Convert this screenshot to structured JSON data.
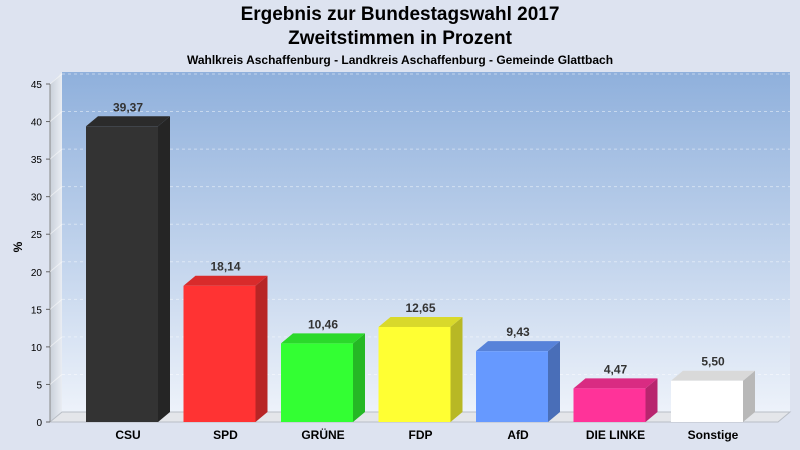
{
  "chart_data": {
    "type": "bar",
    "title": "Ergebnis zur Bundestagswahl 2017",
    "subtitle": "Zweitstimmen in Prozent",
    "caption": "Wahlkreis Aschaffenburg - Landkreis Aschaffenburg - Gemeinde Glattbach",
    "ylabel": "%",
    "xlabel": "",
    "ylim": [
      0,
      45
    ],
    "yticks": [
      0,
      5,
      10,
      15,
      20,
      25,
      30,
      35,
      40,
      45
    ],
    "categories": [
      "CSU",
      "SPD",
      "GRÜNE",
      "FDP",
      "AfD",
      "DIE LINKE",
      "Sonstige"
    ],
    "values": [
      39.37,
      18.14,
      10.46,
      12.65,
      9.43,
      4.47,
      5.5
    ],
    "value_labels": [
      "39,37",
      "18,14",
      "10,46",
      "12,65",
      "9,43",
      "4,47",
      "5,50"
    ],
    "colors": [
      "#333333",
      "#ff3333",
      "#33ff33",
      "#ffff33",
      "#6699ff",
      "#ff3399",
      "#ffffff"
    ],
    "grid": true,
    "legend": "none"
  }
}
